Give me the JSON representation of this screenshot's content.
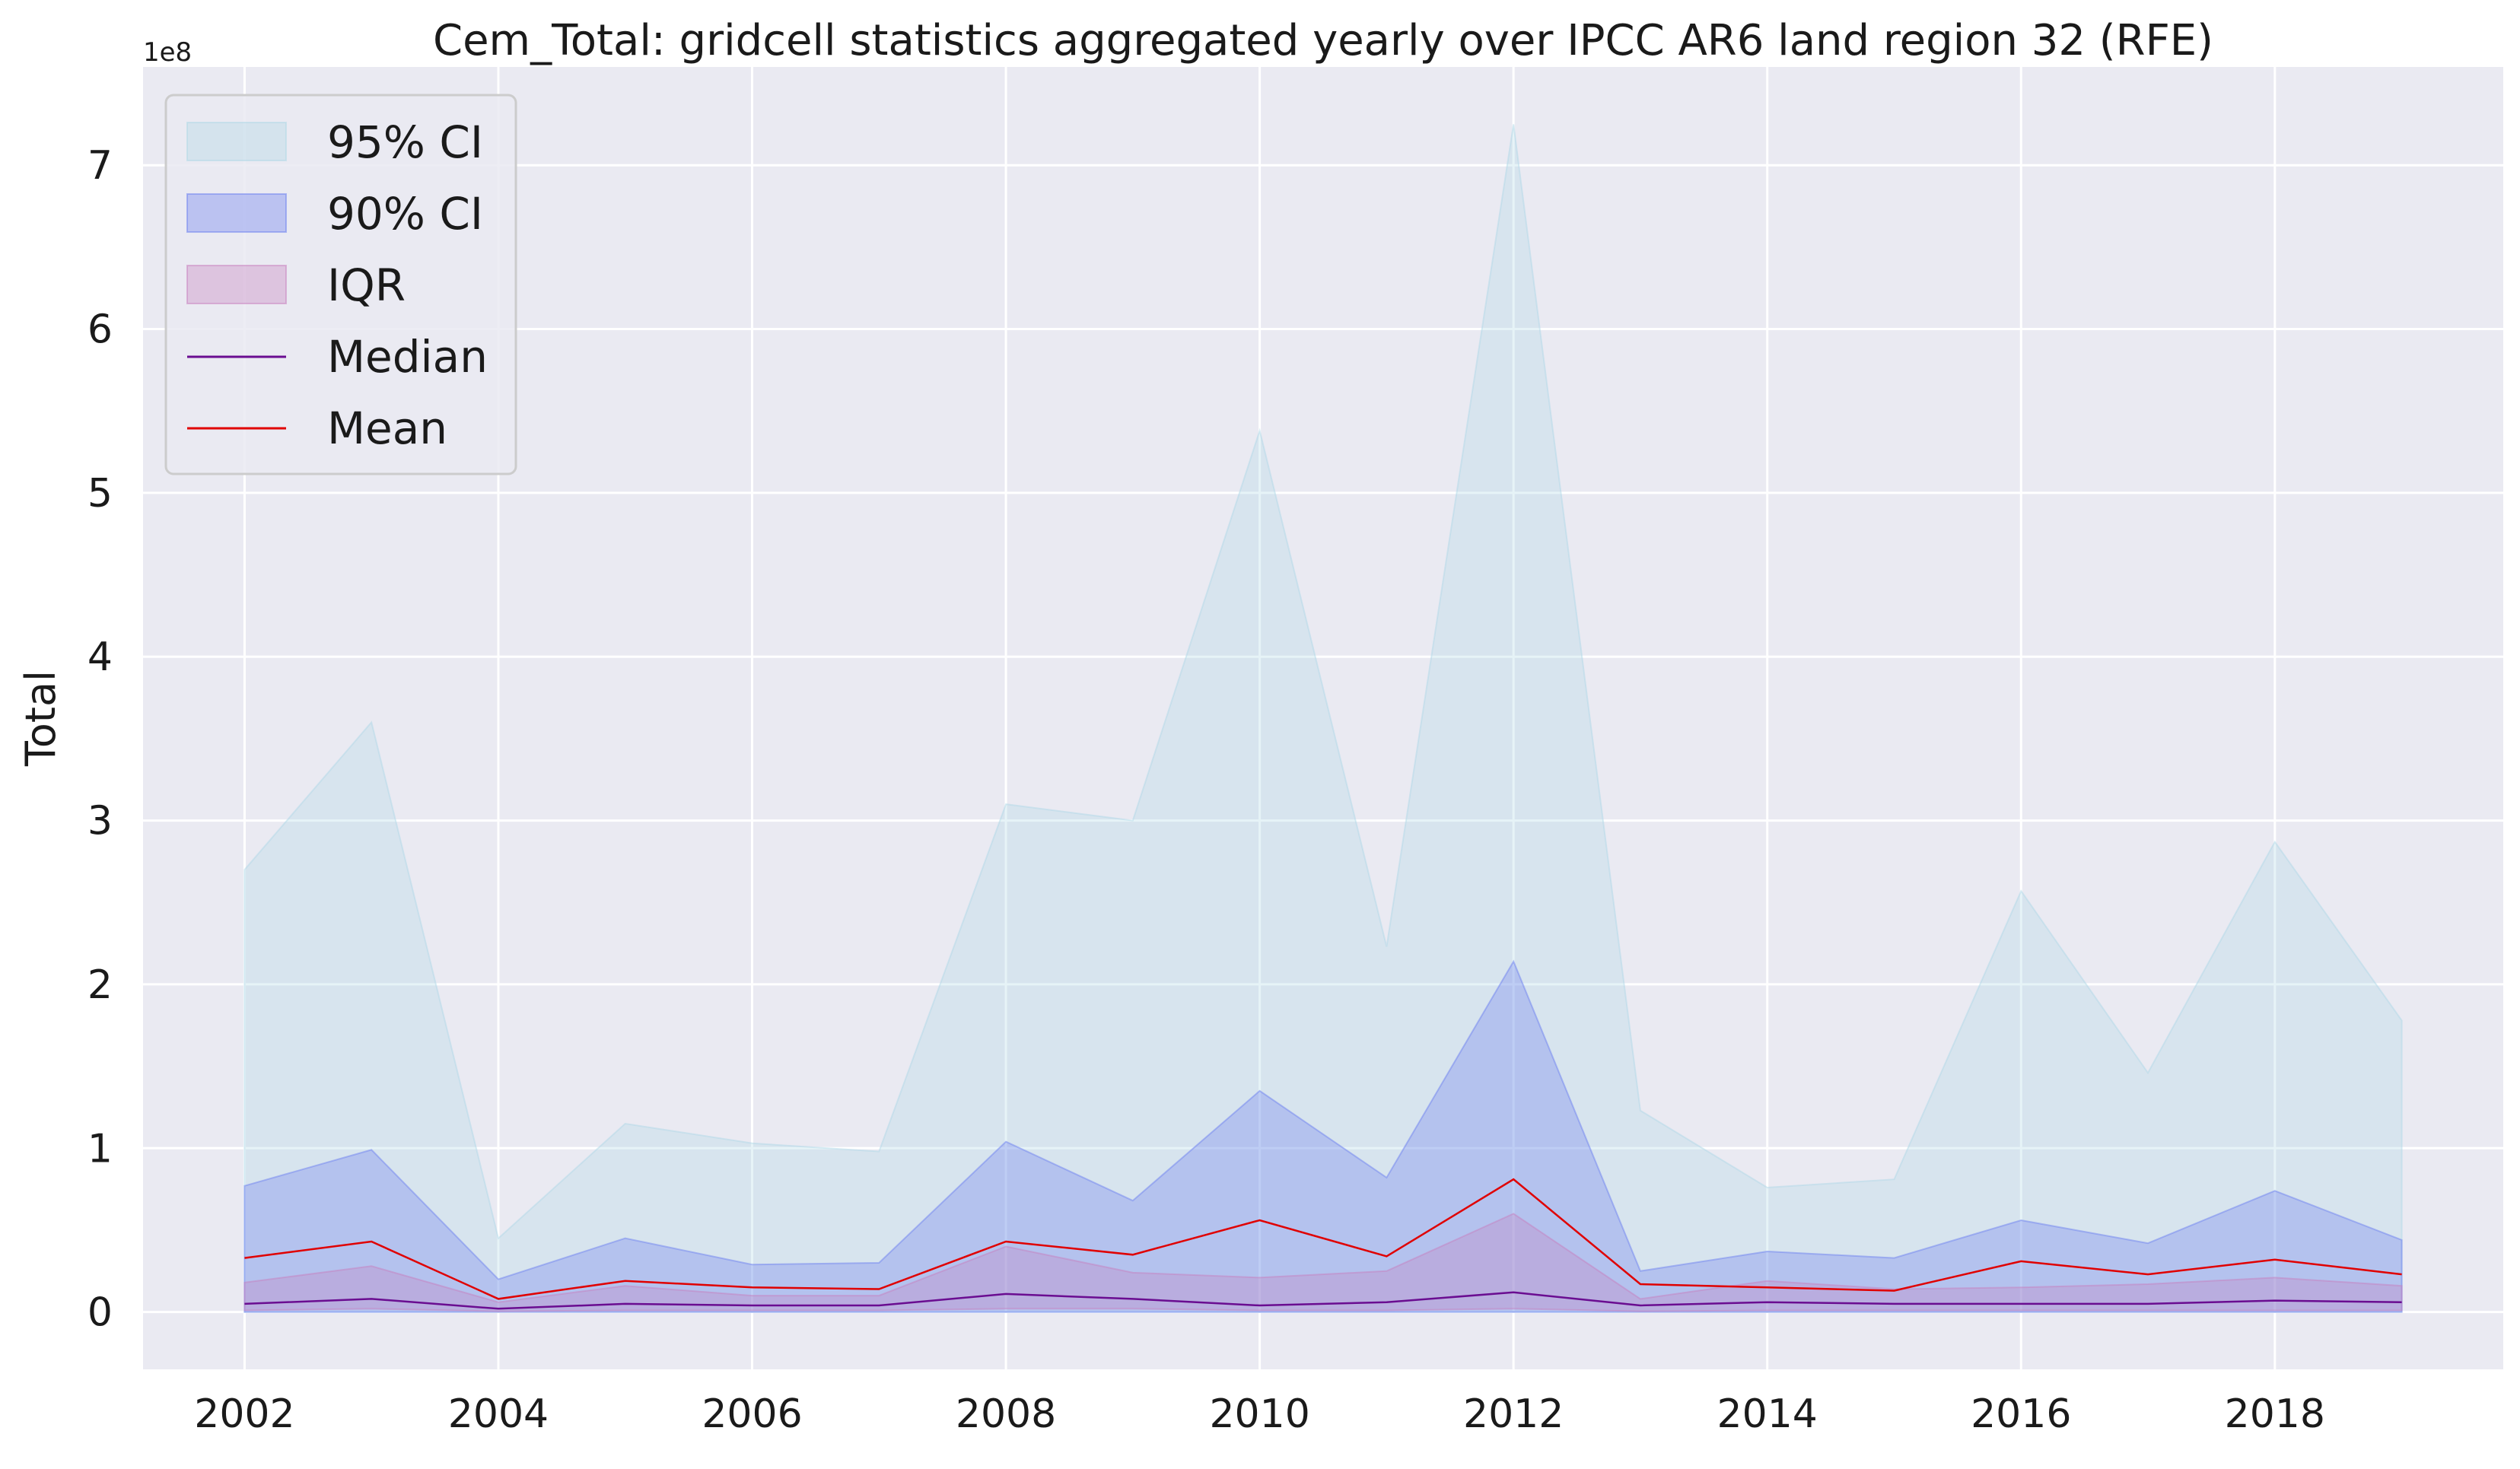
{
  "chart_data": {
    "type": "area",
    "title": "Cem_Total: gridcell statistics aggregated yearly over IPCC AR6 land region 32 (RFE)",
    "xlabel": "",
    "ylabel": "Total",
    "y_offset_label": "1e8",
    "y_scale": 100000000,
    "xlim": [
      2001.2,
      2019.8
    ],
    "ylim": [
      -0.35,
      7.6
    ],
    "x_ticks": [
      2002,
      2004,
      2006,
      2008,
      2010,
      2012,
      2014,
      2016,
      2018
    ],
    "y_ticks": [
      0,
      1,
      2,
      3,
      4,
      5,
      6,
      7
    ],
    "grid": true,
    "legend_position": "top-left",
    "x": [
      2002,
      2003,
      2004,
      2005,
      2006,
      2007,
      2008,
      2009,
      2010,
      2011,
      2012,
      2013,
      2014,
      2015,
      2016,
      2017,
      2018,
      2019
    ],
    "series": [
      {
        "name": "95% CI",
        "kind": "band",
        "color": "#add8e6",
        "opacity": 0.3,
        "lower": [
          0,
          0,
          0,
          0,
          0,
          0,
          0,
          0,
          0,
          0,
          0,
          0,
          0,
          0,
          0,
          0,
          0,
          0
        ],
        "upper": [
          2.7,
          3.6,
          0.45,
          1.15,
          1.03,
          0.98,
          3.1,
          3.0,
          5.38,
          2.23,
          7.25,
          1.23,
          0.76,
          0.81,
          2.57,
          1.46,
          2.87,
          1.78
        ]
      },
      {
        "name": "90% CI",
        "kind": "band",
        "color": "#6a7df0",
        "opacity": 0.32,
        "lower": [
          0,
          0,
          0,
          0,
          0,
          0,
          0,
          0,
          0,
          0,
          0,
          0,
          0,
          0,
          0,
          0,
          0,
          0
        ],
        "upper": [
          0.77,
          0.99,
          0.2,
          0.45,
          0.29,
          0.3,
          1.04,
          0.68,
          1.35,
          0.82,
          2.14,
          0.25,
          0.37,
          0.33,
          0.56,
          0.42,
          0.74,
          0.44
        ]
      },
      {
        "name": "IQR",
        "kind": "band",
        "color": "#c77dbd",
        "opacity": 0.3,
        "lower": [
          0.01,
          0.02,
          0.005,
          0.01,
          0.01,
          0.01,
          0.02,
          0.02,
          0.01,
          0.01,
          0.02,
          0.005,
          0.01,
          0.01,
          0.01,
          0.01,
          0.01,
          0.01
        ],
        "upper": [
          0.18,
          0.28,
          0.06,
          0.16,
          0.1,
          0.1,
          0.4,
          0.24,
          0.21,
          0.25,
          0.6,
          0.08,
          0.19,
          0.14,
          0.15,
          0.17,
          0.21,
          0.16
        ]
      },
      {
        "name": "Median",
        "kind": "line",
        "color": "#6a0d91",
        "values": [
          0.05,
          0.08,
          0.02,
          0.05,
          0.04,
          0.04,
          0.11,
          0.08,
          0.04,
          0.06,
          0.12,
          0.04,
          0.06,
          0.05,
          0.05,
          0.05,
          0.07,
          0.06
        ]
      },
      {
        "name": "Mean",
        "kind": "line",
        "color": "#e00000",
        "values": [
          0.33,
          0.43,
          0.08,
          0.19,
          0.15,
          0.14,
          0.43,
          0.35,
          0.56,
          0.34,
          0.81,
          0.17,
          0.15,
          0.13,
          0.31,
          0.23,
          0.32,
          0.23
        ]
      }
    ]
  }
}
